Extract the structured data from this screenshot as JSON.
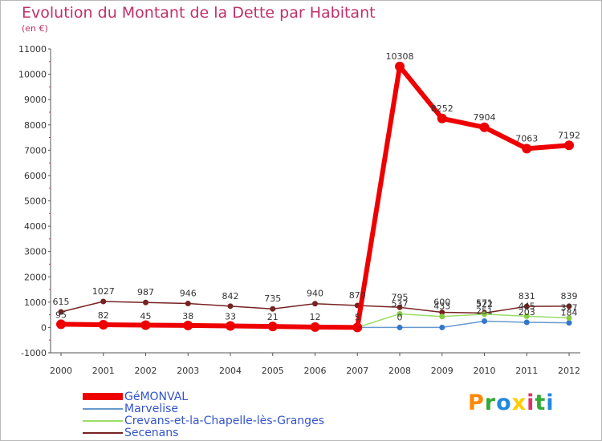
{
  "chart_data": {
    "type": "line",
    "title": "Evolution du Montant de la Dette par Habitant",
    "subtitle": "(en €)",
    "x": [
      "2000",
      "2001",
      "2002",
      "2003",
      "2004",
      "2005",
      "2006",
      "2007",
      "2008",
      "2009",
      "2010",
      "2011",
      "2012"
    ],
    "ylim": [
      -1000,
      11000
    ],
    "yticks": [
      -1000,
      0,
      1000,
      2000,
      3000,
      4000,
      5000,
      6000,
      7000,
      8000,
      9000,
      10000,
      11000
    ],
    "grid": false,
    "legend_position": "bottom-left",
    "series": [
      {
        "name": "GéMONVAL",
        "color": "#ee0000",
        "values": [
          126,
          109,
          93,
          79,
          60,
          39,
          16,
          0,
          10308,
          8252,
          7904,
          7063,
          7192
        ],
        "labels": [
          "",
          "",
          "",
          "",
          "",
          "",
          "",
          "",
          "10308",
          "8252",
          "7904",
          "7063",
          "7192"
        ],
        "marker_fill": "#ee0000"
      },
      {
        "name": "Marvelise",
        "color": "#6699cc",
        "values": [
          null,
          null,
          null,
          null,
          null,
          null,
          null,
          0,
          0,
          0,
          251,
          203,
          184
        ],
        "labels": [
          "",
          "",
          "",
          "",
          "",
          "",
          "",
          "",
          "0",
          "",
          "251",
          "203",
          "184"
        ],
        "marker_fill": "#3377cc"
      },
      {
        "name": "Crevans-et-la-Chapelle-lès-Granges",
        "color": "#99dd66",
        "values": [
          95,
          82,
          45,
          38,
          33,
          21,
          12,
          5,
          537,
          433,
          522,
          445,
          377
        ],
        "labels": [
          "95",
          "82",
          "45",
          "38",
          "33",
          "21",
          "12",
          "5",
          "537",
          "433",
          "522",
          "445",
          "377"
        ],
        "marker_fill": "#88cc44"
      },
      {
        "name": "Secenans",
        "color": "#772222",
        "values": [
          615,
          1027,
          987,
          946,
          842,
          735,
          940,
          870,
          795,
          600,
          571,
          831,
          839
        ],
        "labels": [
          "615",
          "1027",
          "987",
          "946",
          "842",
          "735",
          "940",
          "870",
          "795",
          "600",
          "571",
          "831",
          "839"
        ],
        "marker_fill": "#772222"
      }
    ]
  },
  "logo": {
    "text": "Proxiti",
    "colors": [
      "#ff8800",
      "#33aa33",
      "#2288dd",
      "#ffcc00",
      "#dd3366",
      "#33aa33",
      "#2288dd"
    ]
  }
}
